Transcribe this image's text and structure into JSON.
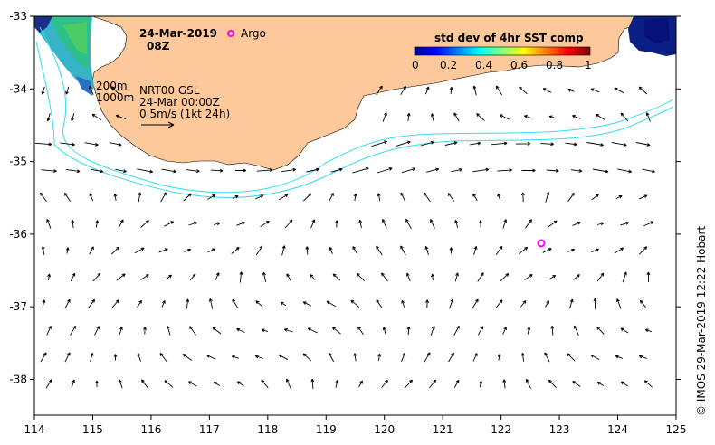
{
  "map": {
    "lon_ticks": [
      "114",
      "115",
      "116",
      "117",
      "118",
      "119",
      "120",
      "121",
      "122",
      "123",
      "124",
      "125"
    ],
    "lat_ticks": [
      "-33",
      "-34",
      "-35",
      "-36",
      "-37",
      "-38"
    ],
    "lon_range": [
      114,
      125
    ],
    "lat_range": [
      -38.5,
      -33
    ]
  },
  "header": {
    "date": "24-Mar-2019",
    "time": "08Z",
    "argo_label": "Argo",
    "argo_color": "#ff00ff"
  },
  "legend": {
    "title": "std dev of 4hr SST comp",
    "ticks": [
      "0",
      "0.2",
      "0.4",
      "0.6",
      "0.8",
      "1"
    ]
  },
  "annotations": {
    "contour_200": "200m",
    "contour_1000": "1000m",
    "product": "NRT00 GSL",
    "product_time": "24-Mar 00:00Z",
    "scale": "0.5m/s (1kt 24h)"
  },
  "credit": "© IMOS 29-Mar-2019 12:22 Hobart",
  "argo_float": {
    "lon": 122.72,
    "lat": -36.13
  },
  "colors": {
    "land": "#fdc89a",
    "contour": "#33ddee",
    "arrow": "#000000",
    "argo": "#ff00ff"
  }
}
